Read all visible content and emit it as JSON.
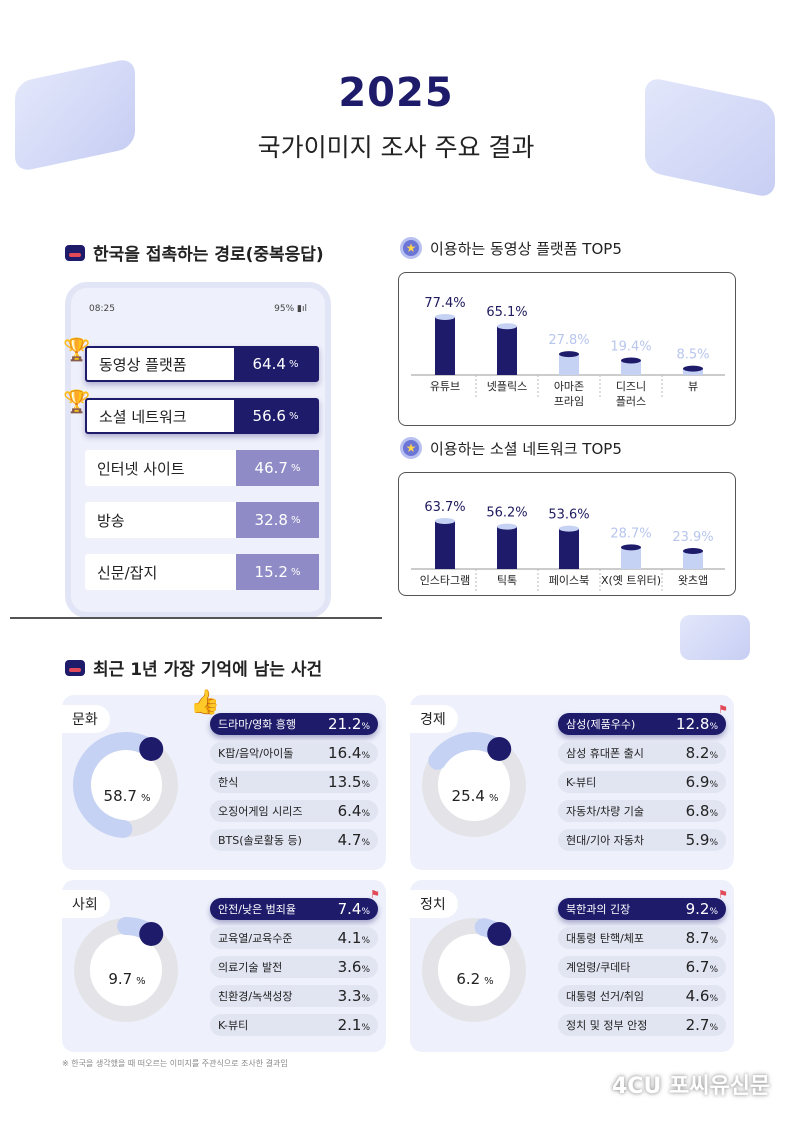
{
  "header": {
    "year": "2025",
    "subtitle": "국가이미지 조사 주요 결과"
  },
  "section_routes": {
    "title": "한국을 접촉하는 경로(중복응답)",
    "phone_time": "08:25",
    "phone_battery": "95%",
    "items": [
      {
        "label": "동영상 플랫폼",
        "value": "64.4",
        "unit": "%"
      },
      {
        "label": "소셜 네트워크",
        "value": "56.6",
        "unit": "%"
      },
      {
        "label": "인터넷 사이트",
        "value": "46.7",
        "unit": "%"
      },
      {
        "label": "방송",
        "value": "32.8",
        "unit": "%"
      },
      {
        "label": "신문/잡지",
        "value": "15.2",
        "unit": "%"
      }
    ]
  },
  "chart_data": [
    {
      "type": "bar",
      "title": "이용하는 동영상 플랫폼 TOP5",
      "categories": [
        "유튜브",
        "넷플릭스",
        "아마존\n프라임",
        "디즈니\n플러스",
        "뷰"
      ],
      "values": [
        77.4,
        65.1,
        27.8,
        19.4,
        8.5
      ],
      "labels": [
        "77.4%",
        "65.1%",
        "27.8%",
        "19.4%",
        "8.5%"
      ],
      "ylim": [
        0,
        100
      ]
    },
    {
      "type": "bar",
      "title": "이용하는 소셜 네트워크 TOP5",
      "categories": [
        "인스타그램",
        "틱톡",
        "페이스북",
        "X(옛 트위터)",
        "왓츠앱"
      ],
      "values": [
        63.7,
        56.2,
        53.6,
        28.7,
        23.9
      ],
      "labels": [
        "63.7%",
        "56.2%",
        "53.6%",
        "28.7%",
        "23.9%"
      ],
      "ylim": [
        0,
        100
      ]
    }
  ],
  "colors": {
    "navy": "#1e1b6b",
    "light": "#c5d2f3",
    "lavender": "#8f8bc6"
  },
  "section_events": {
    "title": "최근 1년 가장 기억에 남는 사건",
    "cards": [
      {
        "category": "문화",
        "total": 58.7,
        "total_text": "58.7",
        "items": [
          {
            "label": "드라마/영화 흥행",
            "value": "21.2"
          },
          {
            "label": "K팝/음악/아이돌",
            "value": "16.4"
          },
          {
            "label": "한식",
            "value": "13.5"
          },
          {
            "label": "오징어게임 시리즈",
            "value": "6.4"
          },
          {
            "label": "BTS(솔로활동 등)",
            "value": "4.7"
          }
        ]
      },
      {
        "category": "경제",
        "total": 25.4,
        "total_text": "25.4",
        "items": [
          {
            "label": "삼성(제품우수)",
            "value": "12.8"
          },
          {
            "label": "삼성 휴대폰 출시",
            "value": "8.2"
          },
          {
            "label": "K-뷰티",
            "value": "6.9"
          },
          {
            "label": "자동차/차량 기술",
            "value": "6.8"
          },
          {
            "label": "현대/기아 자동차",
            "value": "5.9"
          }
        ]
      },
      {
        "category": "사회",
        "total": 9.7,
        "total_text": "9.7",
        "items": [
          {
            "label": "안전/낮은 범죄율",
            "value": "7.4"
          },
          {
            "label": "교육열/교육수준",
            "value": "4.1"
          },
          {
            "label": "의료기술 발전",
            "value": "3.6"
          },
          {
            "label": "친환경/녹색성장",
            "value": "3.3"
          },
          {
            "label": "K-뷰티",
            "value": "2.1"
          }
        ]
      },
      {
        "category": "정치",
        "total": 6.2,
        "total_text": "6.2",
        "items": [
          {
            "label": "북한과의 긴장",
            "value": "9.2"
          },
          {
            "label": "대통령 탄핵/체포",
            "value": "8.7"
          },
          {
            "label": "계엄령/쿠데타",
            "value": "6.7"
          },
          {
            "label": "대통령 선거/취임",
            "value": "4.6"
          },
          {
            "label": "정치 및 정부 안정",
            "value": "2.7"
          }
        ]
      }
    ],
    "unit": "%"
  },
  "footnote": "※ 한국을 생각했을 때 떠오르는 이미지를 주관식으로 조사한 결과임",
  "watermark": "4CU 포씨유신문"
}
